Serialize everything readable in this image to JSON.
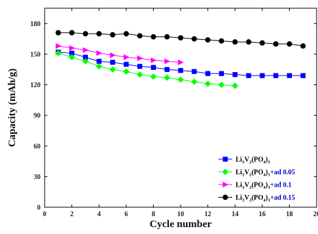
{
  "chart_data": {
    "type": "line",
    "xlabel": "Cycle number",
    "ylabel": "Capacity (mAh/g)",
    "xlim": [
      0,
      20
    ],
    "ylim": [
      0,
      195
    ],
    "xticks": [
      0,
      2,
      4,
      6,
      8,
      10,
      12,
      14,
      16,
      18,
      20
    ],
    "yticks": [
      0,
      30,
      60,
      90,
      120,
      150,
      180
    ],
    "legend_position": "bottom-right",
    "grid": false,
    "series": [
      {
        "legend": [
          "Li",
          "3",
          "V",
          "2",
          "(PO",
          "4",
          ")",
          "3",
          ""
        ],
        "color": "#0000ff",
        "marker": "square",
        "x": [
          1,
          2,
          3,
          4,
          5,
          6,
          7,
          8,
          9,
          10,
          11,
          12,
          13,
          14,
          15,
          16,
          17,
          18,
          19
        ],
        "y": [
          152,
          151,
          147,
          143,
          142,
          140,
          138,
          137,
          135,
          134,
          133,
          131,
          131,
          130,
          129,
          129,
          129,
          129,
          129
        ]
      },
      {
        "legend": [
          "Li",
          "3",
          "V",
          "2",
          "(PO",
          "4",
          ")",
          "3",
          "+ad 0.05"
        ],
        "color": "#00ff00",
        "marker": "diamond",
        "x": [
          1,
          2,
          3,
          4,
          5,
          6,
          7,
          8,
          9,
          10,
          11,
          12,
          13,
          14
        ],
        "y": [
          151,
          147,
          143,
          138,
          135,
          133,
          130,
          128,
          127,
          125,
          123,
          121,
          120,
          119
        ]
      },
      {
        "legend": [
          "Li",
          "3",
          "V",
          "2",
          "(PO",
          "4",
          ")",
          "3",
          "+ad 0.1"
        ],
        "color": "#ff00ff",
        "marker": "triangle-right",
        "x": [
          1,
          2,
          3,
          4,
          5,
          6,
          7,
          8,
          9,
          10
        ],
        "y": [
          158,
          156,
          154,
          151,
          149,
          147,
          146,
          144,
          143,
          142
        ]
      },
      {
        "legend": [
          "Li",
          "3",
          "V",
          "2",
          "(PO",
          "4",
          ")",
          "3",
          "+ad 0.15"
        ],
        "color": "#000000",
        "marker": "circle",
        "x": [
          1,
          2,
          3,
          4,
          5,
          6,
          7,
          8,
          9,
          10,
          11,
          12,
          13,
          14,
          15,
          16,
          17,
          18,
          19
        ],
        "y": [
          171,
          171,
          170,
          170,
          169,
          170,
          168,
          167,
          167,
          166,
          165,
          164,
          163,
          162,
          162,
          161,
          160,
          160,
          158
        ]
      }
    ]
  }
}
